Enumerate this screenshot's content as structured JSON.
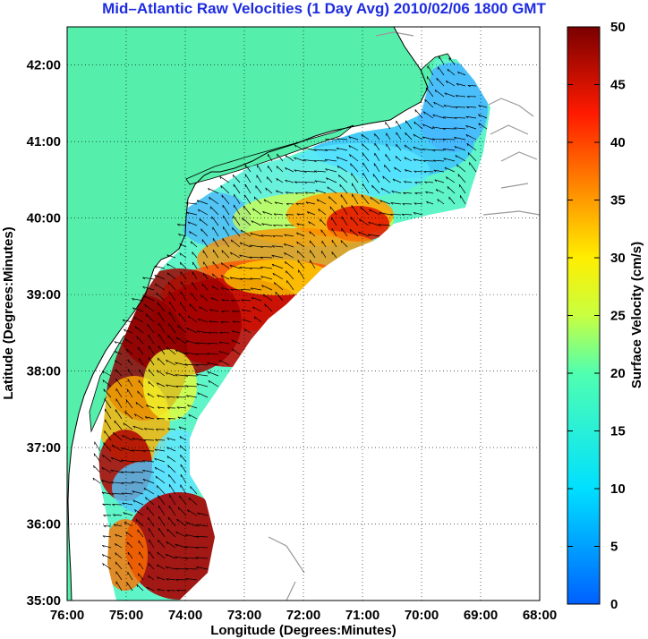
{
  "title": "Mid–Atlantic Raw Velocities (1 Day Avg) 2010/02/06 1800 GMT",
  "xlabel": "Longitude (Degrees:Minutes)",
  "ylabel": "Latitude (Degrees:Minutes)",
  "colorbar_label": "Surface Velocity (cm/s)",
  "colors": {
    "land": "#55eeaa",
    "ocean": "#ffffff",
    "grid": "#000000",
    "arrow": "#000000",
    "coast_secondary": "#999999"
  },
  "chart_data": {
    "type": "heatmap",
    "xlim": [
      -76,
      -68
    ],
    "ylim": [
      35,
      42.5
    ],
    "x_ticks": [
      "76:00",
      "75:00",
      "74:00",
      "73:00",
      "72:00",
      "71:00",
      "70:00",
      "69:00",
      "68:00"
    ],
    "y_ticks": [
      "35:00",
      "36:00",
      "37:00",
      "38:00",
      "39:00",
      "40:00",
      "41:00",
      "42:00"
    ],
    "colorbar": {
      "min": 0,
      "max": 50,
      "ticks": [
        "0",
        "5",
        "10",
        "15",
        "20",
        "25",
        "30",
        "35",
        "40",
        "45",
        "50"
      ],
      "colormap": "jet"
    },
    "grid": "on"
  }
}
